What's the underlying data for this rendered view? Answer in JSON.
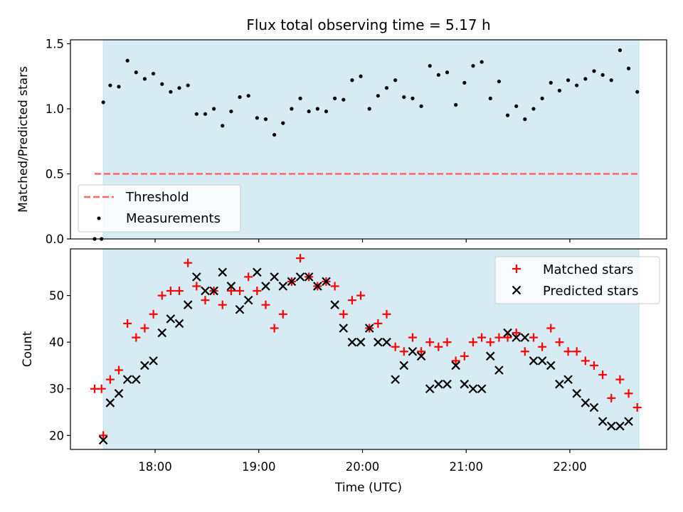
{
  "title": "Flux total observing time = 5.17 h",
  "colors": {
    "band": "#add8e6",
    "threshold": "#ff6666",
    "matched": "#ff0000",
    "predicted": "#000000",
    "measurements": "#000000"
  },
  "chart_data": [
    {
      "type": "scatter",
      "ylabel": "Matched/Predicted stars",
      "ylim": [
        0,
        1.53
      ],
      "yticks": [
        "0.0",
        "0.5",
        "1.0",
        "1.5"
      ],
      "shaded_interval": [
        "17:30",
        "22:40"
      ],
      "threshold": {
        "value": 0.5,
        "x_range": [
          "17:25",
          "22:40"
        ]
      },
      "legend": {
        "position": "lower-left",
        "entries": [
          "Threshold",
          "Measurements"
        ]
      },
      "series": [
        {
          "name": "Measurements",
          "x": [
            "17:25",
            "17:29",
            "17:30",
            "17:34",
            "17:39",
            "17:44",
            "17:49",
            "17:54",
            "17:59",
            "18:04",
            "18:09",
            "18:14",
            "18:19",
            "18:24",
            "18:29",
            "18:34",
            "18:39",
            "18:44",
            "18:49",
            "18:54",
            "18:59",
            "19:04",
            "19:09",
            "19:14",
            "19:19",
            "19:24",
            "19:29",
            "19:34",
            "19:39",
            "19:44",
            "19:49",
            "19:54",
            "19:59",
            "20:04",
            "20:09",
            "20:14",
            "20:19",
            "20:24",
            "20:29",
            "20:34",
            "20:39",
            "20:44",
            "20:49",
            "20:54",
            "20:59",
            "21:04",
            "21:09",
            "21:14",
            "21:19",
            "21:24",
            "21:29",
            "21:34",
            "21:39",
            "21:44",
            "21:49",
            "21:54",
            "21:59",
            "22:04",
            "22:09",
            "22:14",
            "22:19",
            "22:24",
            "22:29",
            "22:34",
            "22:39"
          ],
          "y": [
            0.0,
            0.0,
            1.05,
            1.18,
            1.17,
            1.37,
            1.28,
            1.23,
            1.27,
            1.19,
            1.13,
            1.16,
            1.18,
            0.96,
            0.96,
            1.0,
            0.87,
            0.98,
            1.09,
            1.1,
            0.93,
            0.92,
            0.8,
            0.89,
            1.0,
            1.08,
            0.98,
            1.0,
            0.98,
            1.08,
            1.07,
            1.22,
            1.25,
            1.0,
            1.1,
            1.16,
            1.22,
            1.09,
            1.08,
            1.02,
            1.33,
            1.26,
            1.28,
            1.03,
            1.2,
            1.33,
            1.36,
            1.08,
            1.21,
            0.95,
            1.02,
            0.92,
            1.0,
            1.08,
            1.2,
            1.14,
            1.22,
            1.18,
            1.23,
            1.29,
            1.26,
            1.22,
            1.45,
            1.31,
            1.13
          ]
        }
      ]
    },
    {
      "type": "scatter",
      "xlabel": "Time (UTC)",
      "ylabel": "Count",
      "ylim": [
        17,
        60
      ],
      "yticks": [
        "20",
        "30",
        "40",
        "50"
      ],
      "xlim": [
        "17:11",
        "22:56"
      ],
      "xticks": [
        "18:00",
        "19:00",
        "20:00",
        "21:00",
        "22:00"
      ],
      "shaded_interval": [
        "17:30",
        "22:40"
      ],
      "legend": {
        "position": "top-right",
        "entries": [
          "Matched stars",
          "Predicted stars"
        ]
      },
      "series": [
        {
          "name": "Matched stars",
          "marker": "+",
          "x": [
            "17:25",
            "17:29",
            "17:30",
            "17:34",
            "17:39",
            "17:44",
            "17:49",
            "17:54",
            "17:59",
            "18:04",
            "18:09",
            "18:14",
            "18:19",
            "18:24",
            "18:29",
            "18:34",
            "18:39",
            "18:44",
            "18:49",
            "18:54",
            "18:59",
            "19:04",
            "19:09",
            "19:14",
            "19:19",
            "19:24",
            "19:29",
            "19:34",
            "19:39",
            "19:44",
            "19:49",
            "19:54",
            "19:59",
            "20:04",
            "20:09",
            "20:14",
            "20:19",
            "20:24",
            "20:29",
            "20:34",
            "20:39",
            "20:44",
            "20:49",
            "20:54",
            "20:59",
            "21:04",
            "21:09",
            "21:14",
            "21:19",
            "21:24",
            "21:29",
            "21:34",
            "21:39",
            "21:44",
            "21:49",
            "21:54",
            "21:59",
            "22:04",
            "22:09",
            "22:14",
            "22:19",
            "22:24",
            "22:29",
            "22:34",
            "22:39"
          ],
          "y": [
            30,
            30,
            20,
            32,
            34,
            44,
            41,
            43,
            46,
            50,
            51,
            51,
            57,
            52,
            49,
            51,
            48,
            51,
            51,
            54,
            51,
            48,
            43,
            46,
            53,
            58,
            54,
            52,
            53,
            52,
            46,
            49,
            50,
            43,
            44,
            46,
            39,
            38,
            41,
            38,
            40,
            39,
            40,
            36,
            37,
            40,
            41,
            40,
            41,
            41,
            42,
            38,
            41,
            39,
            43,
            40,
            38,
            38,
            36,
            35,
            33,
            28,
            32,
            29,
            26
          ]
        },
        {
          "name": "Predicted stars",
          "marker": "x",
          "x": [
            "17:30",
            "17:34",
            "17:39",
            "17:44",
            "17:49",
            "17:54",
            "17:59",
            "18:04",
            "18:09",
            "18:14",
            "18:19",
            "18:24",
            "18:29",
            "18:34",
            "18:39",
            "18:44",
            "18:49",
            "18:54",
            "18:59",
            "19:04",
            "19:09",
            "19:14",
            "19:19",
            "19:24",
            "19:29",
            "19:34",
            "19:39",
            "19:44",
            "19:49",
            "19:54",
            "19:59",
            "20:04",
            "20:09",
            "20:14",
            "20:19",
            "20:24",
            "20:29",
            "20:34",
            "20:39",
            "20:44",
            "20:49",
            "20:54",
            "20:59",
            "21:04",
            "21:09",
            "21:14",
            "21:19",
            "21:24",
            "21:29",
            "21:34",
            "21:39",
            "21:44",
            "21:49",
            "21:54",
            "21:59",
            "22:04",
            "22:09",
            "22:14",
            "22:19",
            "22:24",
            "22:29",
            "22:34",
            "22:39"
          ],
          "y": [
            19,
            27,
            29,
            32,
            32,
            35,
            36,
            42,
            45,
            44,
            48,
            54,
            51,
            51,
            55,
            52,
            47,
            49,
            55,
            52,
            54,
            52,
            53,
            54,
            54,
            52,
            53,
            48,
            43,
            40,
            40,
            43,
            40,
            40,
            32,
            35,
            38,
            37,
            30,
            31,
            31,
            35,
            31,
            30,
            30,
            37,
            34,
            42,
            41,
            41,
            36,
            36,
            35,
            31,
            32,
            29,
            27,
            26,
            23,
            22,
            22,
            23,
            null
          ]
        }
      ]
    }
  ]
}
